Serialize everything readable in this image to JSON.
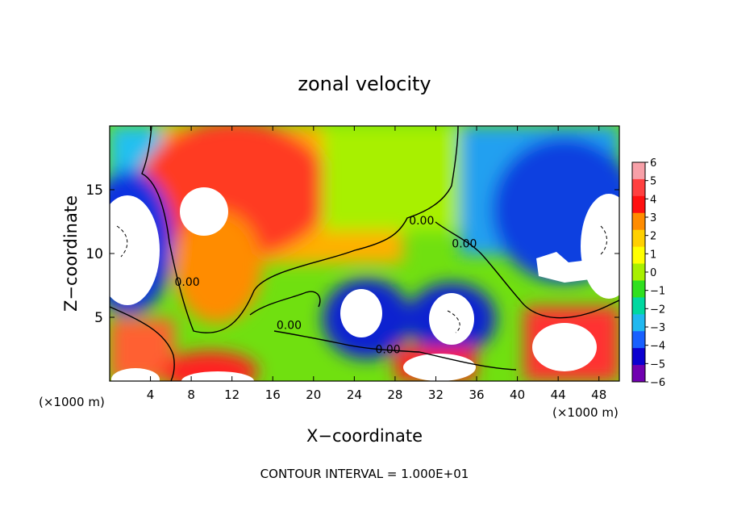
{
  "chart_data": {
    "type": "heatmap",
    "title": "zonal velocity",
    "xlabel": "X−coordinate",
    "ylabel": "Z−coordinate",
    "x_unit_left": "(×1000 m)",
    "x_unit_right": "(×1000 m)",
    "footer": "CONTOUR INTERVAL = 1.000E+01",
    "xlim": [
      0,
      50
    ],
    "ylim": [
      0,
      20
    ],
    "xticks": [
      4,
      8,
      12,
      16,
      20,
      24,
      28,
      32,
      36,
      40,
      44,
      48
    ],
    "yticks": [
      5,
      10,
      15
    ],
    "colorbar": {
      "range": [
        -6,
        6
      ],
      "ticks": [
        6,
        5,
        4,
        3,
        2,
        1,
        0,
        -1,
        -2,
        -3,
        -4,
        -5,
        -6
      ],
      "tick_labels": [
        "6",
        "5",
        "4",
        "3",
        "2",
        "1",
        "0",
        "−1",
        "−2",
        "−3",
        "−4",
        "−5",
        "−6"
      ],
      "colors": [
        "#f7a0a8",
        "#ff4040",
        "#ff1010",
        "#ff8c00",
        "#ffd000",
        "#ffff00",
        "#a8f000",
        "#30e020",
        "#00d8a0",
        "#20b8f0",
        "#1860ff",
        "#0c00d0",
        "#7000b0"
      ]
    },
    "contour_labels": [
      {
        "text": "0.00",
        "x": 17.6,
        "z": 4.4
      },
      {
        "text": "0.00",
        "x": 27.3,
        "z": 2.5
      },
      {
        "text": "0.00",
        "x": 30.6,
        "z": 12.6
      },
      {
        "text": "0.00",
        "x": 34.8,
        "z": 10.8
      },
      {
        "text": "0.00",
        "x": 7.6,
        "z": 7.8
      }
    ]
  }
}
